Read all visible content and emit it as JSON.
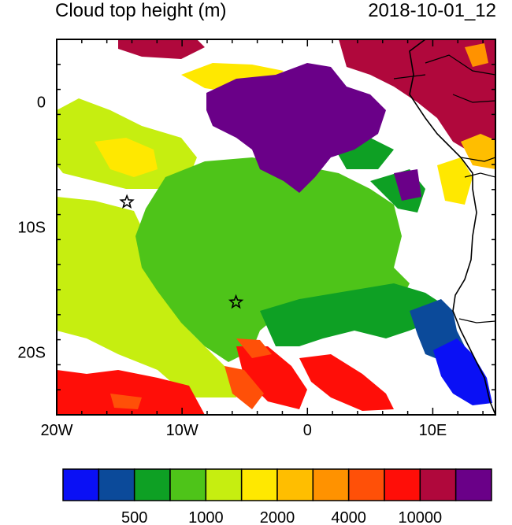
{
  "header": {
    "title": "Cloud top height (m)",
    "datetime": "2018-10-01_12"
  },
  "map": {
    "lon_range": [
      -20,
      15
    ],
    "lat_range": [
      -25,
      5
    ],
    "x_ticks": [
      {
        "value": -20,
        "label": "20W"
      },
      {
        "value": -10,
        "label": "10W"
      },
      {
        "value": 0,
        "label": "0"
      },
      {
        "value": 10,
        "label": "10E"
      }
    ],
    "y_ticks": [
      {
        "value": 0,
        "label": "0"
      },
      {
        "value": -10,
        "label": "10S"
      },
      {
        "value": -20,
        "label": "20S"
      }
    ],
    "markers": [
      {
        "type": "star",
        "lon": -14.4,
        "lat": -8.0
      },
      {
        "type": "star",
        "lon": -5.7,
        "lat": -16.0
      }
    ]
  },
  "colorbar": {
    "colors": [
      "#0a10f5",
      "#0b4a9a",
      "#0ea024",
      "#4ec419",
      "#c6ee10",
      "#ffe800",
      "#ffbe00",
      "#ff9200",
      "#ff5008",
      "#ff0e08",
      "#b0083c",
      "#6a0088"
    ],
    "labels": [
      {
        "boundary": 2,
        "text": "500"
      },
      {
        "boundary": 4,
        "text": "1000"
      },
      {
        "boundary": 6,
        "text": "2000"
      },
      {
        "boundary": 8,
        "text": "4000"
      },
      {
        "boundary": 10,
        "text": "10000"
      }
    ]
  },
  "palette": {
    "purple": "#6a0088",
    "maroon": "#b0083c",
    "red": "#ff0e08",
    "orange": "#ff5008",
    "amber": "#ff9200",
    "gold": "#ffbe00",
    "yellow": "#ffe800",
    "lime": "#c6ee10",
    "lightgreen": "#4ec419",
    "green": "#0ea024",
    "steelblue": "#0b4a9a",
    "blue": "#0a10f5",
    "coast": "#000000"
  }
}
